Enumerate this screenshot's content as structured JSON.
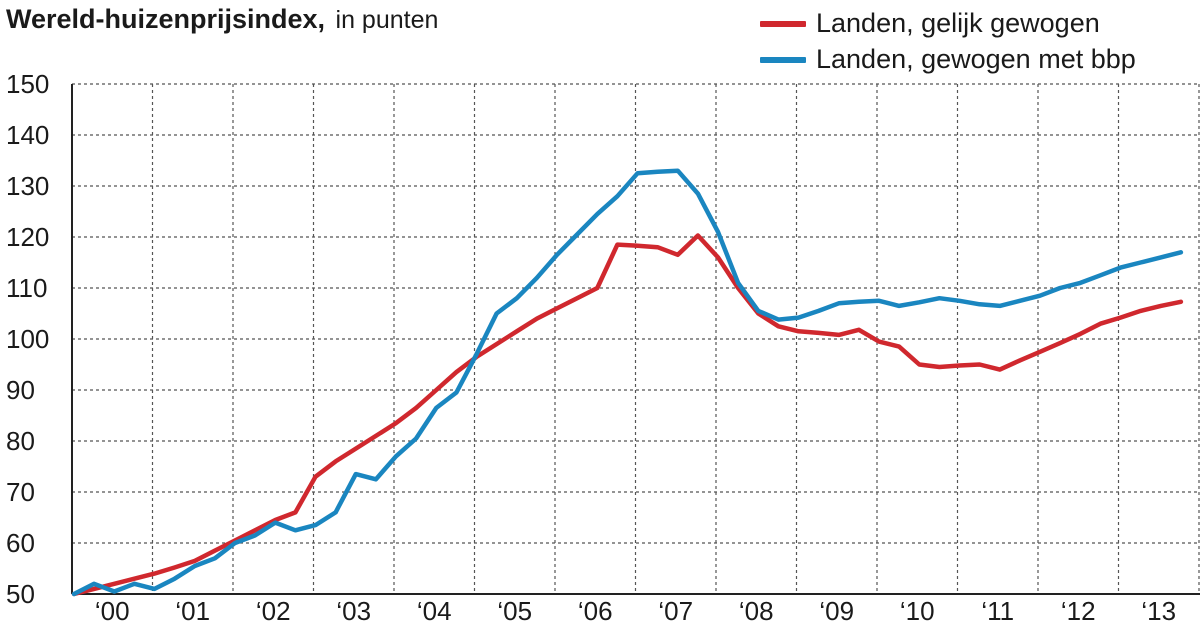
{
  "chart_data": {
    "type": "line",
    "title": "Wereld-huizenprijsindex,",
    "subtitle": "in punten",
    "xlabel": "",
    "ylabel": "",
    "ylim": [
      50,
      150
    ],
    "y_ticks": [
      50,
      60,
      70,
      80,
      90,
      100,
      110,
      120,
      130,
      140,
      150
    ],
    "x_tick_labels": [
      "‘00",
      "‘01",
      "‘02",
      "‘03",
      "‘04",
      "‘05",
      "‘06",
      "‘07",
      "‘08",
      "‘09",
      "‘10",
      "‘11",
      "‘12",
      "‘13"
    ],
    "grid": true,
    "legend_position": "top-right",
    "series": [
      {
        "name": "Landen, gelijk gewogen",
        "color": "#d0282e",
        "x": [
          2000.0,
          2000.25,
          2000.5,
          2000.75,
          2001.0,
          2001.25,
          2001.5,
          2001.75,
          2002.0,
          2002.25,
          2002.5,
          2002.75,
          2003.0,
          2003.25,
          2003.5,
          2003.75,
          2004.0,
          2004.25,
          2004.5,
          2004.75,
          2005.0,
          2005.25,
          2005.5,
          2005.75,
          2006.0,
          2006.25,
          2006.5,
          2006.75,
          2007.0,
          2007.25,
          2007.5,
          2007.75,
          2008.0,
          2008.25,
          2008.5,
          2008.75,
          2009.0,
          2009.25,
          2009.5,
          2009.75,
          2010.0,
          2010.25,
          2010.5,
          2010.75,
          2011.0,
          2011.25,
          2011.5,
          2011.75,
          2012.0,
          2012.25,
          2012.5,
          2012.75,
          2013.0,
          2013.25,
          2013.5,
          2013.75
        ],
        "values": [
          50.0,
          51.0,
          52.0,
          53.0,
          54.0,
          55.2,
          56.5,
          58.5,
          60.5,
          62.5,
          64.5,
          66.0,
          73.0,
          76.0,
          78.5,
          81.0,
          83.5,
          86.5,
          90.0,
          93.5,
          96.5,
          99.0,
          101.5,
          104.0,
          106.0,
          108.0,
          110.0,
          118.5,
          118.3,
          118.0,
          116.5,
          120.3,
          116.0,
          110.0,
          105.0,
          102.5,
          101.5,
          101.2,
          100.8,
          101.8,
          99.5,
          98.5,
          95.0,
          94.5,
          94.8,
          95.0,
          94.0,
          95.8,
          97.5,
          99.2,
          101.0,
          103.0,
          104.2,
          105.5,
          106.5,
          107.3
        ]
      },
      {
        "name": "Landen, gewogen met bbp",
        "color": "#1a86c0",
        "x": [
          2000.0,
          2000.25,
          2000.5,
          2000.75,
          2001.0,
          2001.25,
          2001.5,
          2001.75,
          2002.0,
          2002.25,
          2002.5,
          2002.75,
          2003.0,
          2003.25,
          2003.5,
          2003.75,
          2004.0,
          2004.25,
          2004.5,
          2004.75,
          2005.0,
          2005.25,
          2005.5,
          2005.75,
          2006.0,
          2006.25,
          2006.5,
          2006.75,
          2007.0,
          2007.25,
          2007.5,
          2007.75,
          2008.0,
          2008.25,
          2008.5,
          2008.75,
          2009.0,
          2009.25,
          2009.5,
          2009.75,
          2010.0,
          2010.25,
          2010.5,
          2010.75,
          2011.0,
          2011.25,
          2011.5,
          2011.75,
          2012.0,
          2012.25,
          2012.5,
          2012.75,
          2013.0,
          2013.25,
          2013.5,
          2013.75
        ],
        "values": [
          50.0,
          52.0,
          50.5,
          52.0,
          51.0,
          53.0,
          55.5,
          57.0,
          60.0,
          61.5,
          64.0,
          62.5,
          63.5,
          66.0,
          73.5,
          72.5,
          77.0,
          80.5,
          86.5,
          89.5,
          97.0,
          105.0,
          108.0,
          112.0,
          116.5,
          120.5,
          124.5,
          128.0,
          132.5,
          132.8,
          133.0,
          128.5,
          121.0,
          111.0,
          105.5,
          103.8,
          104.2,
          105.5,
          107.0,
          107.3,
          107.5,
          106.5,
          107.2,
          108.0,
          107.5,
          106.8,
          106.5,
          107.5,
          108.5,
          110.0,
          111.0,
          112.5,
          114.0,
          115.0,
          116.0,
          117.0
        ]
      }
    ]
  }
}
